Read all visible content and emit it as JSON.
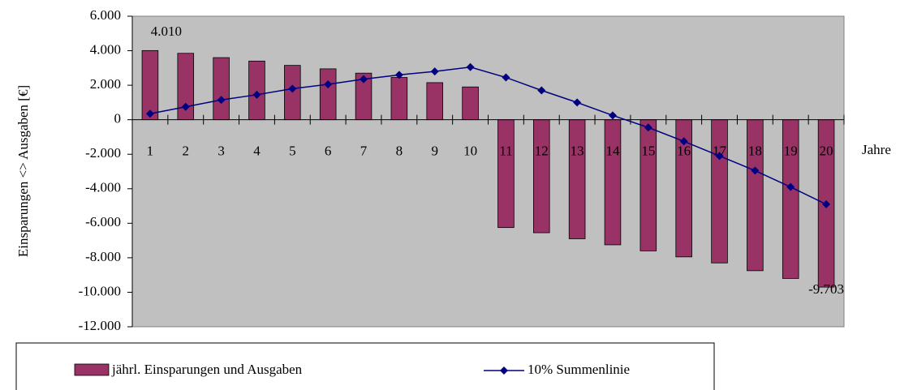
{
  "chart_data": {
    "type": "bar_line",
    "y_label": "Einsparungen <> Ausgaben [€]",
    "x_label": "Jahre",
    "categories": [
      "1",
      "2",
      "3",
      "4",
      "5",
      "6",
      "7",
      "8",
      "9",
      "10",
      "11",
      "12",
      "13",
      "14",
      "15",
      "16",
      "17",
      "18",
      "19",
      "20"
    ],
    "series": [
      {
        "name": "jährl. Einsparungen und Ausgaben",
        "type": "bar",
        "color": "#993366",
        "values": [
          4010,
          3850,
          3600,
          3400,
          3150,
          2950,
          2700,
          2450,
          2150,
          1900,
          -6250,
          -6550,
          -6900,
          -7250,
          -7600,
          -7950,
          -8300,
          -8750,
          -9200,
          -9703
        ],
        "value_labels": [
          "4.010",
          null,
          null,
          null,
          null,
          null,
          null,
          null,
          null,
          null,
          null,
          null,
          null,
          null,
          null,
          null,
          null,
          null,
          null,
          "-9.703"
        ]
      },
      {
        "name": "10% Summenlinie",
        "type": "line",
        "color": "#000080",
        "values": [
          350,
          750,
          1150,
          1450,
          1800,
          2050,
          2350,
          2600,
          2800,
          3050,
          2450,
          1700,
          1000,
          250,
          -450,
          -1250,
          -2100,
          -2950,
          -3900,
          -4900
        ]
      }
    ],
    "ylim": [
      -12000,
      6000
    ],
    "yticks": [
      {
        "value": -12000,
        "label": "-12.000"
      },
      {
        "value": -10000,
        "label": "-10.000"
      },
      {
        "value": -8000,
        "label": "-8.000"
      },
      {
        "value": -6000,
        "label": "-6.000"
      },
      {
        "value": -4000,
        "label": "-4.000"
      },
      {
        "value": -2000,
        "label": "-2.000"
      },
      0,
      {
        "value": 2000,
        "label": "2.000"
      },
      {
        "value": 4000,
        "label": "4.000"
      },
      {
        "value": 6000,
        "label": "6.000"
      }
    ],
    "plot_background": "#c0c0c0",
    "legend": "bottom"
  }
}
